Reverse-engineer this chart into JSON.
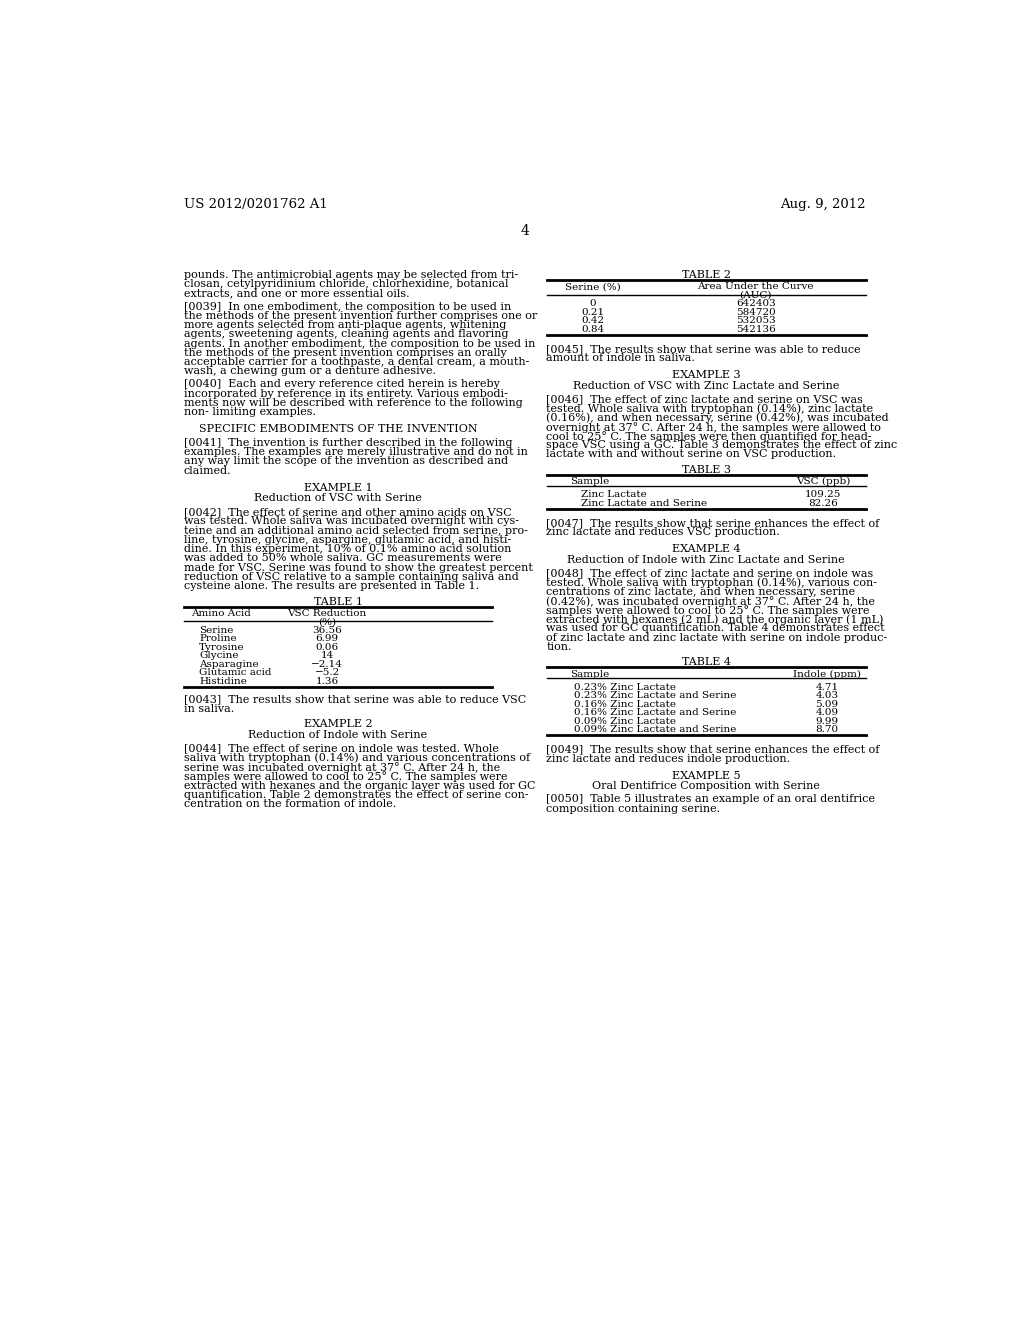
{
  "background_color": "#ffffff",
  "header_left": "US 2012/0201762 A1",
  "header_right": "Aug. 9, 2012",
  "page_number": "4",
  "table1_rows": [
    [
      "Serine",
      "36.56"
    ],
    [
      "Proline",
      "6.99"
    ],
    [
      "Tyrosine",
      "0.06"
    ],
    [
      "Glycine",
      "14"
    ],
    [
      "Asparagine",
      "−2.14"
    ],
    [
      "Glutamic acid",
      "−5.2"
    ],
    [
      "Histidine",
      "1.36"
    ]
  ],
  "table2_rows": [
    [
      "0",
      "642403"
    ],
    [
      "0.21",
      "584720"
    ],
    [
      "0.42",
      "532053"
    ],
    [
      "0.84",
      "542136"
    ]
  ],
  "table3_rows": [
    [
      "Zinc Lactate",
      "109.25"
    ],
    [
      "Zinc Lactate and Serine",
      "82.26"
    ]
  ],
  "table4_rows": [
    [
      "0.23% Zinc Lactate",
      "4.71"
    ],
    [
      "0.23% Zinc Lactate and Serine",
      "4.03"
    ],
    [
      "0.16% Zinc Lactate",
      "5.09"
    ],
    [
      "0.16% Zinc Lactate and Serine",
      "4.09"
    ],
    [
      "0.09% Zinc Lactate",
      "9.99"
    ],
    [
      "0.09% Zinc Lactate and Serine",
      "8.70"
    ]
  ]
}
